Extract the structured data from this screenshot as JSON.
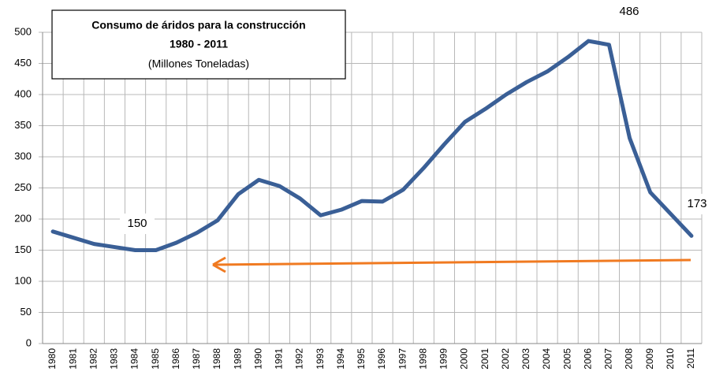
{
  "chart_data": {
    "type": "line",
    "title": "Consumo de áridos para la construcción",
    "subtitle": "1980 - 2011",
    "units": "(Millones Toneladas)",
    "categories": [
      "1980",
      "1981",
      "1982",
      "1983",
      "1984",
      "1985",
      "1986",
      "1987",
      "1988",
      "1989",
      "1990",
      "1991",
      "1992",
      "1993",
      "1994",
      "1995",
      "1996",
      "1997",
      "1998",
      "1999",
      "2000",
      "2001",
      "2002",
      "2003",
      "2004",
      "2005",
      "2006",
      "2007",
      "2008",
      "2009",
      "2010",
      "2011"
    ],
    "values": [
      180,
      170,
      160,
      155,
      150,
      150,
      162,
      178,
      198,
      240,
      263,
      253,
      233,
      206,
      215,
      229,
      228,
      247,
      282,
      320,
      356,
      377,
      400,
      420,
      437,
      460,
      486,
      480,
      330,
      243,
      208,
      173
    ],
    "color": "#3a5f96",
    "ylim": [
      0,
      500
    ],
    "yticks": [
      0,
      50,
      100,
      150,
      200,
      250,
      300,
      350,
      400,
      450,
      500
    ],
    "grid": true,
    "annotations": [
      "150",
      "486",
      "173"
    ]
  }
}
